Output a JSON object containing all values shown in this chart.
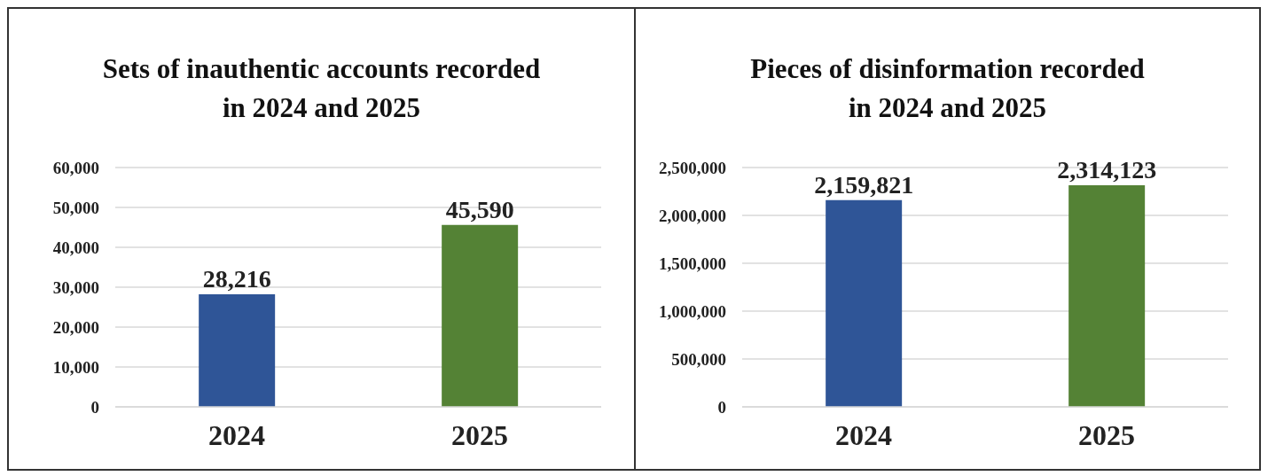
{
  "chart_data": [
    {
      "type": "bar",
      "title": "Sets of inauthentic accounts recorded\nin 2024 and 2025",
      "categories": [
        "2024",
        "2025"
      ],
      "values": [
        28216,
        45590
      ],
      "value_labels": [
        "28,216",
        "45,590"
      ],
      "colors": [
        "#2f5597",
        "#548235"
      ],
      "ylim": [
        0,
        60000
      ],
      "yticks": [
        0,
        {
          "value": 10000,
          "label": "10,000"
        },
        {
          "value": 20000,
          "label": "20,000"
        },
        {
          "value": 30000,
          "label": "30,000"
        },
        {
          "value": 40000,
          "label": "40,000"
        },
        {
          "value": 50000,
          "label": "50,000"
        },
        {
          "value": 60000,
          "label": "60,000"
        }
      ],
      "grid": "y"
    },
    {
      "type": "bar",
      "title": "Pieces of disinformation recorded\nin 2024 and 2025",
      "categories": [
        "2024",
        "2025"
      ],
      "values": [
        2159821,
        2314123
      ],
      "value_labels": [
        "2,159,821",
        "2,314,123"
      ],
      "colors": [
        "#2f5597",
        "#548235"
      ],
      "ylim": [
        0,
        2500000
      ],
      "yticks": [
        0,
        {
          "value": 500000,
          "label": "500,000"
        },
        {
          "value": 1000000,
          "label": "1,000,000"
        },
        {
          "value": 1500000,
          "label": "1,500,000"
        },
        {
          "value": 2000000,
          "label": "2,000,000"
        },
        {
          "value": 2500000,
          "label": "2,500,000"
        }
      ],
      "grid": "y"
    }
  ]
}
